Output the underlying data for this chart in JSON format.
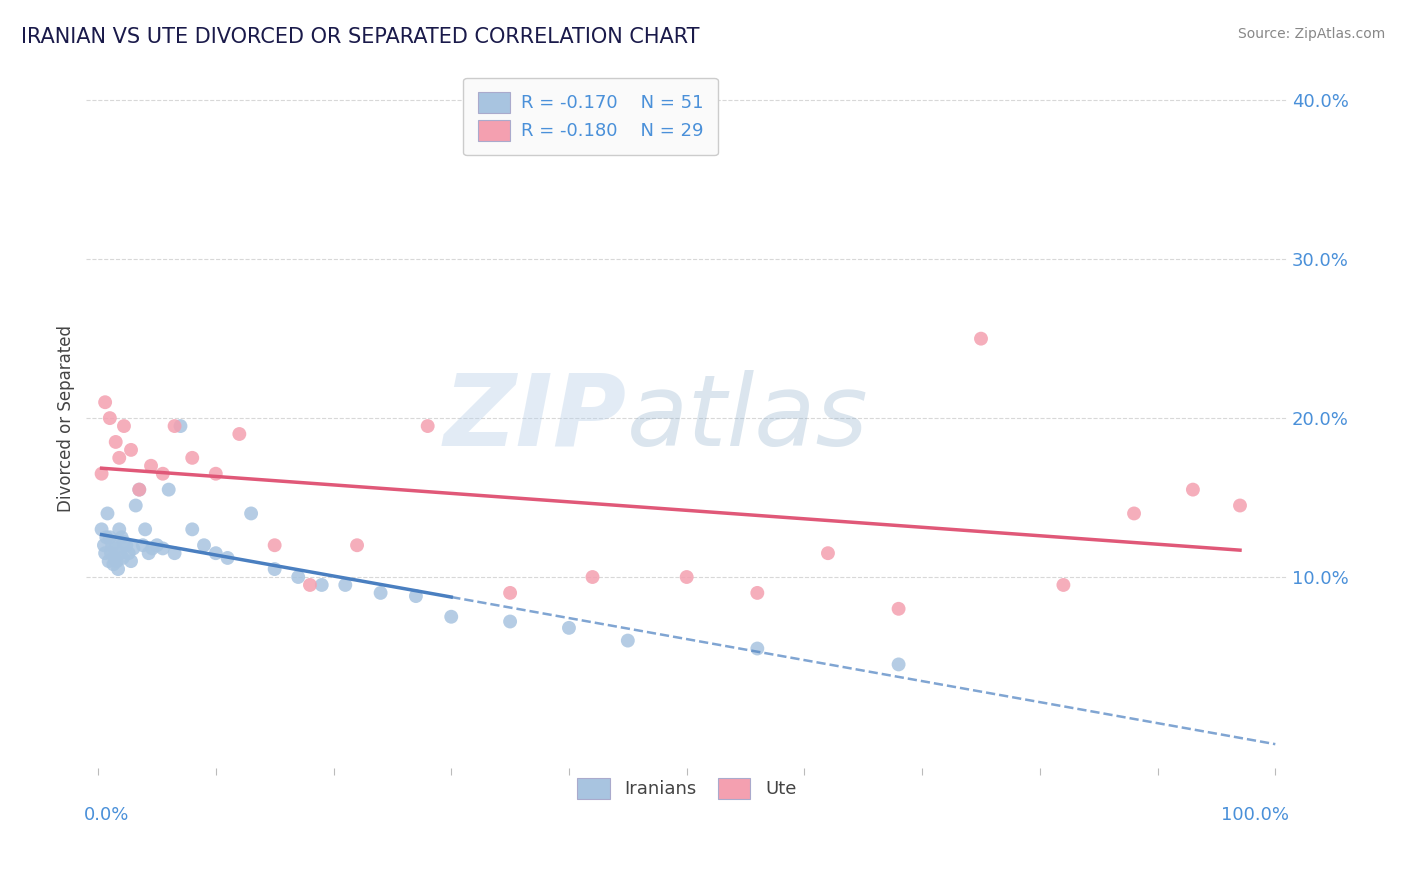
{
  "title": "IRANIAN VS UTE DIVORCED OR SEPARATED CORRELATION CHART",
  "source": "Source: ZipAtlas.com",
  "ylabel": "Divorced or Separated",
  "legend_iranians": "Iranians",
  "legend_ute": "Ute",
  "r_iranian": -0.17,
  "n_iranian": 51,
  "r_ute": -0.18,
  "n_ute": 29,
  "xlim": [
    -0.01,
    1.01
  ],
  "ylim": [
    -0.02,
    0.42
  ],
  "yticks": [
    0.1,
    0.2,
    0.3,
    0.4
  ],
  "ytick_labels": [
    "10.0%",
    "20.0%",
    "30.0%",
    "40.0%"
  ],
  "color_iranian": "#a8c4e0",
  "color_ute": "#f4a0b0",
  "color_iranian_line": "#4a7fc0",
  "color_ute_line": "#e05878",
  "background_color": "#ffffff",
  "grid_color": "#d8d8d8",
  "iranians_x": [
    0.003,
    0.005,
    0.006,
    0.007,
    0.008,
    0.009,
    0.01,
    0.011,
    0.012,
    0.013,
    0.014,
    0.015,
    0.016,
    0.017,
    0.018,
    0.019,
    0.02,
    0.021,
    0.022,
    0.024,
    0.026,
    0.028,
    0.03,
    0.032,
    0.035,
    0.038,
    0.04,
    0.043,
    0.046,
    0.05,
    0.055,
    0.06,
    0.065,
    0.07,
    0.08,
    0.09,
    0.1,
    0.11,
    0.13,
    0.15,
    0.17,
    0.19,
    0.21,
    0.24,
    0.27,
    0.3,
    0.35,
    0.4,
    0.45,
    0.56,
    0.68
  ],
  "iranians_y": [
    0.13,
    0.12,
    0.115,
    0.125,
    0.14,
    0.11,
    0.125,
    0.115,
    0.12,
    0.108,
    0.112,
    0.118,
    0.11,
    0.105,
    0.13,
    0.115,
    0.125,
    0.112,
    0.122,
    0.12,
    0.115,
    0.11,
    0.118,
    0.145,
    0.155,
    0.12,
    0.13,
    0.115,
    0.118,
    0.12,
    0.118,
    0.155,
    0.115,
    0.195,
    0.13,
    0.12,
    0.115,
    0.112,
    0.14,
    0.105,
    0.1,
    0.095,
    0.095,
    0.09,
    0.088,
    0.075,
    0.072,
    0.068,
    0.06,
    0.055,
    0.045
  ],
  "ute_x": [
    0.003,
    0.006,
    0.01,
    0.015,
    0.018,
    0.022,
    0.028,
    0.035,
    0.045,
    0.055,
    0.065,
    0.08,
    0.1,
    0.12,
    0.15,
    0.18,
    0.22,
    0.28,
    0.35,
    0.42,
    0.5,
    0.56,
    0.62,
    0.68,
    0.75,
    0.82,
    0.88,
    0.93,
    0.97
  ],
  "ute_y": [
    0.165,
    0.21,
    0.2,
    0.185,
    0.175,
    0.195,
    0.18,
    0.155,
    0.17,
    0.165,
    0.195,
    0.175,
    0.165,
    0.19,
    0.12,
    0.095,
    0.12,
    0.195,
    0.09,
    0.1,
    0.1,
    0.09,
    0.115,
    0.08,
    0.25,
    0.095,
    0.14,
    0.155,
    0.145
  ],
  "watermark_zip": "ZIP",
  "watermark_atlas": "atlas",
  "title_color": "#1a1a4a",
  "tick_color": "#4a90d9",
  "legend_box_color": "#f0f0f8"
}
